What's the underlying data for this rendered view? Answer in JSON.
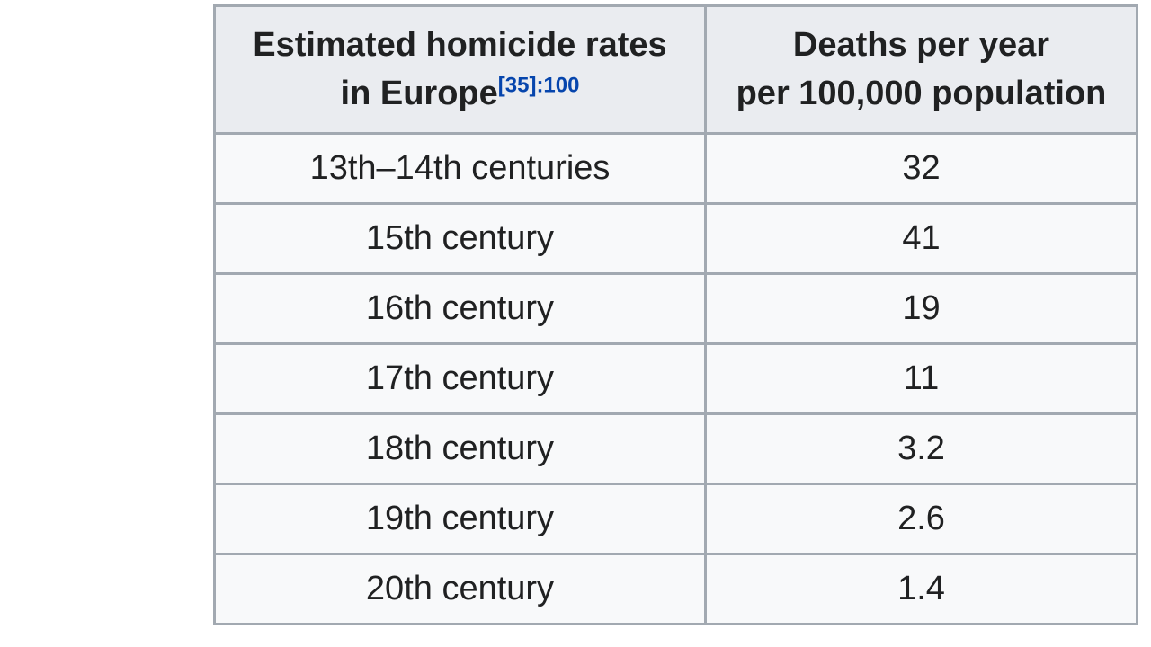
{
  "table": {
    "header": {
      "col1_line1": "Estimated homicide rates",
      "col1_line2": "in Europe",
      "col1_ref": "[35]",
      "col1_ref_page": ":100",
      "col2_line1": "Deaths per year",
      "col2_line2": "per 100,000 population"
    },
    "rows": [
      {
        "period": "13th–14th centuries",
        "rate": "32"
      },
      {
        "period": "15th century",
        "rate": "41"
      },
      {
        "period": "16th century",
        "rate": "19"
      },
      {
        "period": "17th century",
        "rate": "11"
      },
      {
        "period": "18th century",
        "rate": "3.2"
      },
      {
        "period": "19th century",
        "rate": "2.6"
      },
      {
        "period": "20th century",
        "rate": "1.4"
      }
    ],
    "colors": {
      "header_bg": "#eaecf0",
      "row_bg": "#f8f9fa",
      "border": "#a2a9b1",
      "text": "#202122",
      "link_blue": "#0645ad"
    }
  },
  "chart_data": {
    "type": "table",
    "title": "Estimated homicide rates in Europe",
    "citation": "[35]:100",
    "columns": [
      "Estimated homicide rates in Europe",
      "Deaths per year per 100,000 population"
    ],
    "categories": [
      "13th–14th centuries",
      "15th century",
      "16th century",
      "17th century",
      "18th century",
      "19th century",
      "20th century"
    ],
    "values": [
      32,
      41,
      19,
      11,
      3.2,
      2.6,
      1.4
    ]
  }
}
